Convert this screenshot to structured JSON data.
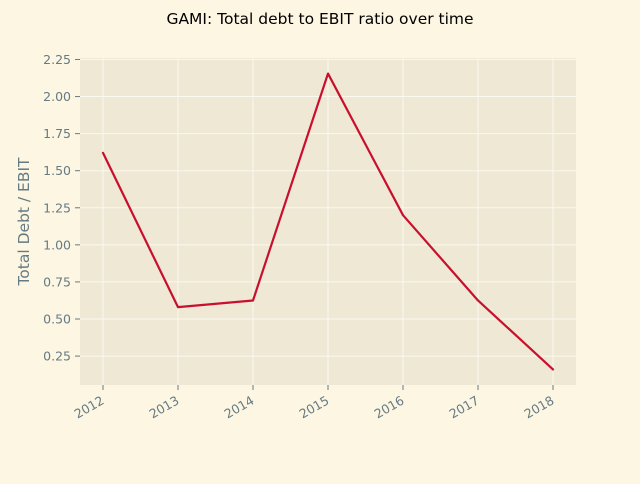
{
  "chart_data": {
    "type": "line",
    "title": "GAMI: Total debt to EBIT ratio over time",
    "xlabel": "",
    "ylabel": "Total Debt / EBIT",
    "x": [
      "2012",
      "2013",
      "2014",
      "2015",
      "2016",
      "2017",
      "2018"
    ],
    "series": [
      {
        "values": [
          1.62,
          0.58,
          0.625,
          2.155,
          1.2,
          0.625,
          0.16
        ],
        "color": "#c8102e"
      }
    ],
    "yticks": [
      0.25,
      0.5,
      0.75,
      1.0,
      1.25,
      1.5,
      1.75,
      2.0,
      2.25
    ],
    "ylim": [
      0.055,
      2.26
    ],
    "grid": true,
    "legend": "none",
    "colors": {
      "page_background": "#fdf6e3",
      "plot_background": "#eee8d5",
      "grid": "#fbf8ef",
      "tick_text": "#657b83",
      "title_text": "#000000",
      "line": "#c8102e"
    }
  }
}
